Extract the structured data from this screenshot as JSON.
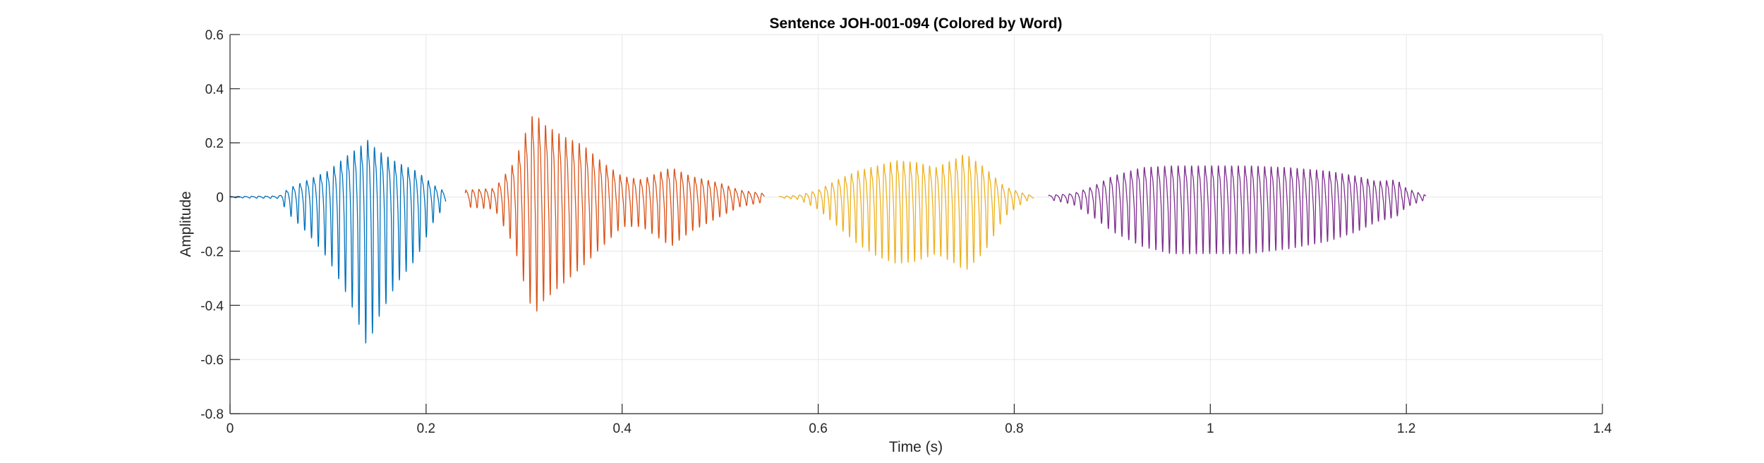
{
  "chart_data": {
    "type": "line",
    "title": "Sentence JOH-001-094 (Colored by Word)",
    "xlabel": "Time (s)",
    "ylabel": "Amplitude",
    "xlim": [
      0,
      1.4
    ],
    "ylim": [
      -0.8,
      0.6
    ],
    "xticks": [
      0,
      0.2,
      0.4,
      0.6,
      0.8,
      1,
      1.2,
      1.4
    ],
    "xtick_labels": [
      "0",
      "0.2",
      "0.4",
      "0.6",
      "0.8",
      "1",
      "1.2",
      "1.4"
    ],
    "yticks": [
      -0.8,
      -0.6,
      -0.4,
      -0.2,
      0,
      0.2,
      0.4,
      0.6
    ],
    "ytick_labels": [
      "-0.8",
      "-0.6",
      "-0.4",
      "-0.2",
      "0",
      "0.2",
      "0.4",
      "0.6"
    ],
    "grid": true,
    "series": [
      {
        "color": "#0072BD",
        "t_start": 0.0,
        "t_end": 0.22,
        "pitch_hz": 140,
        "envelope_pos": [
          [
            0.0,
            0.003
          ],
          [
            0.05,
            0.006
          ],
          [
            0.06,
            0.05
          ],
          [
            0.08,
            0.1
          ],
          [
            0.1,
            0.15
          ],
          [
            0.12,
            0.24
          ],
          [
            0.135,
            0.3
          ],
          [
            0.14,
            0.33
          ],
          [
            0.15,
            0.27
          ],
          [
            0.17,
            0.2
          ],
          [
            0.19,
            0.15
          ],
          [
            0.21,
            0.06
          ],
          [
            0.22,
            0.03
          ]
        ],
        "envelope_neg": [
          [
            0.0,
            -0.003
          ],
          [
            0.05,
            -0.006
          ],
          [
            0.06,
            -0.07
          ],
          [
            0.08,
            -0.15
          ],
          [
            0.1,
            -0.25
          ],
          [
            0.12,
            -0.4
          ],
          [
            0.135,
            -0.55
          ],
          [
            0.14,
            -0.61
          ],
          [
            0.15,
            -0.5
          ],
          [
            0.17,
            -0.35
          ],
          [
            0.19,
            -0.25
          ],
          [
            0.21,
            -0.08
          ],
          [
            0.22,
            -0.04
          ]
        ]
      },
      {
        "color": "#D95319",
        "t_start": 0.24,
        "t_end": 0.545,
        "pitch_hz": 150,
        "envelope_pos": [
          [
            0.24,
            0.04
          ],
          [
            0.27,
            0.05
          ],
          [
            0.29,
            0.2
          ],
          [
            0.3,
            0.35
          ],
          [
            0.31,
            0.49
          ],
          [
            0.32,
            0.42
          ],
          [
            0.34,
            0.35
          ],
          [
            0.36,
            0.3
          ],
          [
            0.38,
            0.2
          ],
          [
            0.4,
            0.12
          ],
          [
            0.42,
            0.1
          ],
          [
            0.45,
            0.17
          ],
          [
            0.47,
            0.12
          ],
          [
            0.5,
            0.08
          ],
          [
            0.52,
            0.04
          ],
          [
            0.545,
            0.02
          ]
        ],
        "envelope_neg": [
          [
            0.24,
            -0.04
          ],
          [
            0.27,
            -0.05
          ],
          [
            0.29,
            -0.2
          ],
          [
            0.3,
            -0.35
          ],
          [
            0.31,
            -0.48
          ],
          [
            0.32,
            -0.42
          ],
          [
            0.34,
            -0.35
          ],
          [
            0.36,
            -0.28
          ],
          [
            0.38,
            -0.2
          ],
          [
            0.4,
            -0.12
          ],
          [
            0.42,
            -0.12
          ],
          [
            0.45,
            -0.2
          ],
          [
            0.47,
            -0.14
          ],
          [
            0.5,
            -0.08
          ],
          [
            0.52,
            -0.04
          ],
          [
            0.545,
            -0.02
          ]
        ]
      },
      {
        "color": "#EDB120",
        "t_start": 0.56,
        "t_end": 0.82,
        "pitch_hz": 145,
        "envelope_pos": [
          [
            0.56,
            0.003
          ],
          [
            0.58,
            0.01
          ],
          [
            0.6,
            0.04
          ],
          [
            0.62,
            0.1
          ],
          [
            0.64,
            0.15
          ],
          [
            0.66,
            0.18
          ],
          [
            0.68,
            0.21
          ],
          [
            0.7,
            0.2
          ],
          [
            0.72,
            0.17
          ],
          [
            0.74,
            0.22
          ],
          [
            0.75,
            0.25
          ],
          [
            0.77,
            0.17
          ],
          [
            0.79,
            0.06
          ],
          [
            0.81,
            0.02
          ],
          [
            0.82,
            0.005
          ]
        ],
        "envelope_neg": [
          [
            0.56,
            -0.003
          ],
          [
            0.58,
            -0.01
          ],
          [
            0.6,
            -0.05
          ],
          [
            0.62,
            -0.12
          ],
          [
            0.64,
            -0.19
          ],
          [
            0.66,
            -0.24
          ],
          [
            0.68,
            -0.27
          ],
          [
            0.7,
            -0.26
          ],
          [
            0.72,
            -0.23
          ],
          [
            0.74,
            -0.27
          ],
          [
            0.75,
            -0.3
          ],
          [
            0.77,
            -0.22
          ],
          [
            0.79,
            -0.08
          ],
          [
            0.81,
            -0.02
          ],
          [
            0.82,
            -0.005
          ]
        ]
      },
      {
        "color": "#7E2F8E",
        "t_start": 0.835,
        "t_end": 1.22,
        "pitch_hz": 150,
        "envelope_pos": [
          [
            0.835,
            0.01
          ],
          [
            0.86,
            0.02
          ],
          [
            0.88,
            0.06
          ],
          [
            0.9,
            0.12
          ],
          [
            0.93,
            0.17
          ],
          [
            0.96,
            0.18
          ],
          [
            1.0,
            0.18
          ],
          [
            1.04,
            0.18
          ],
          [
            1.08,
            0.17
          ],
          [
            1.12,
            0.15
          ],
          [
            1.15,
            0.12
          ],
          [
            1.17,
            0.09
          ],
          [
            1.19,
            0.1
          ],
          [
            1.2,
            0.05
          ],
          [
            1.22,
            0.01
          ]
        ],
        "envelope_neg": [
          [
            0.835,
            -0.01
          ],
          [
            0.86,
            -0.03
          ],
          [
            0.88,
            -0.08
          ],
          [
            0.9,
            -0.14
          ],
          [
            0.93,
            -0.2
          ],
          [
            0.96,
            -0.23
          ],
          [
            1.0,
            -0.23
          ],
          [
            1.04,
            -0.23
          ],
          [
            1.08,
            -0.21
          ],
          [
            1.12,
            -0.18
          ],
          [
            1.15,
            -0.14
          ],
          [
            1.17,
            -0.1
          ],
          [
            1.19,
            -0.08
          ],
          [
            1.2,
            -0.04
          ],
          [
            1.22,
            -0.01
          ]
        ]
      }
    ]
  }
}
